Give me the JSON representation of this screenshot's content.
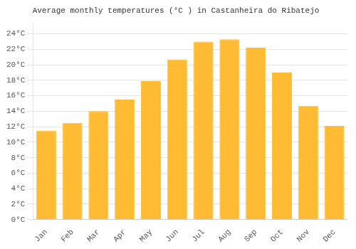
{
  "chart_data": {
    "type": "bar",
    "title": "Average monthly temperatures (°C ) in Castanheira do Ribatejo",
    "categories": [
      "Jan",
      "Feb",
      "Mar",
      "Apr",
      "May",
      "Jun",
      "Jul",
      "Aug",
      "Sep",
      "Oct",
      "Nov",
      "Dec"
    ],
    "values": [
      11.5,
      12.5,
      14.0,
      15.5,
      17.9,
      20.7,
      23.0,
      23.3,
      22.2,
      19.0,
      14.7,
      12.1
    ],
    "color": "#FFBB33",
    "ylim": [
      0,
      25.5
    ],
    "yticks": [
      {
        "value": 0,
        "label": "0°C"
      },
      {
        "value": 2,
        "label": "2°C"
      },
      {
        "value": 4,
        "label": "4°C"
      },
      {
        "value": 6,
        "label": "6°C"
      },
      {
        "value": 8,
        "label": "8°C"
      },
      {
        "value": 10,
        "label": "10°C"
      },
      {
        "value": 12,
        "label": "12°C"
      },
      {
        "value": 14,
        "label": "14°C"
      },
      {
        "value": 16,
        "label": "16°C"
      },
      {
        "value": 18,
        "label": "18°C"
      },
      {
        "value": 20,
        "label": "20°C"
      },
      {
        "value": 22,
        "label": "22°C"
      },
      {
        "value": 24,
        "label": "24°C"
      }
    ],
    "grid": true
  }
}
